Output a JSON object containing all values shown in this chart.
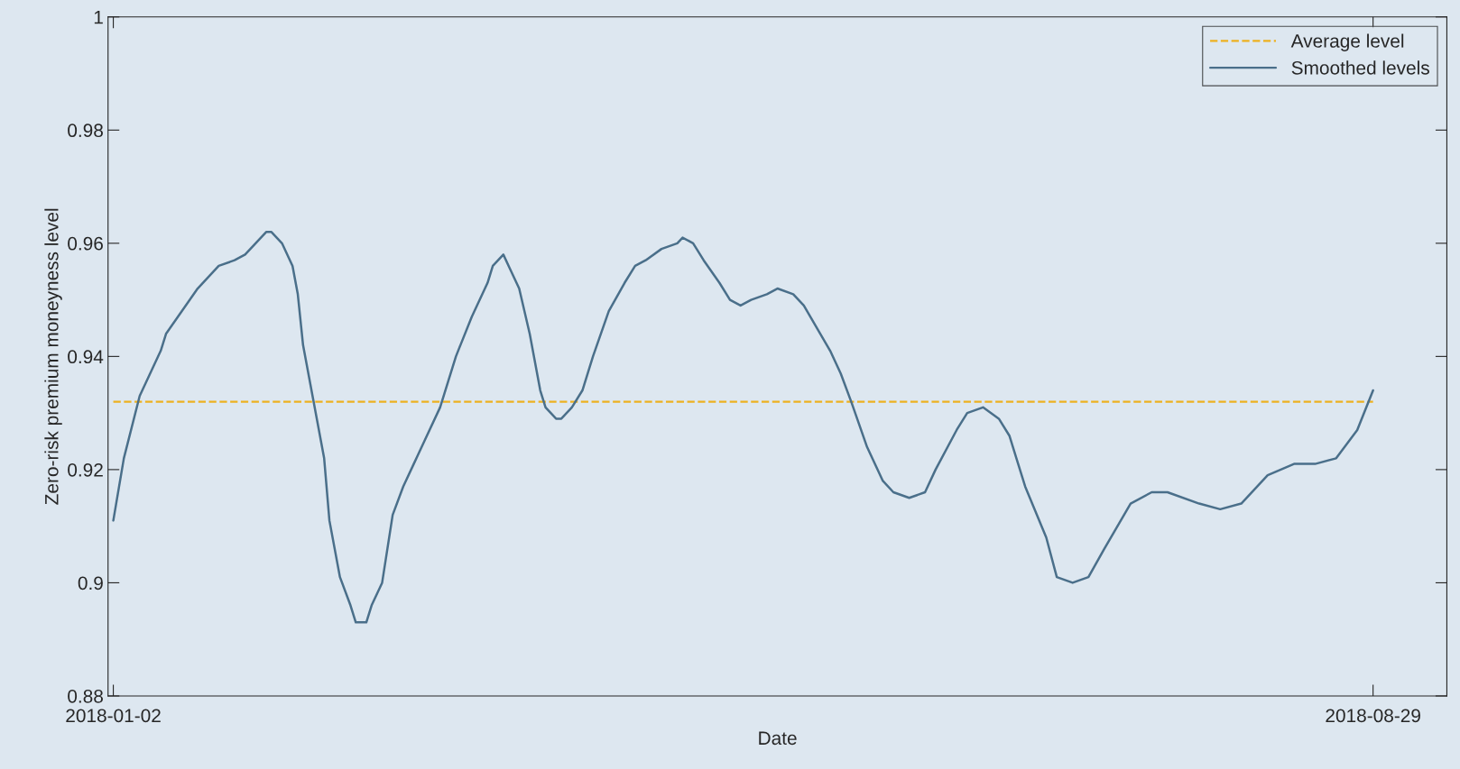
{
  "chart_data": {
    "type": "line",
    "xlabel": "Date",
    "ylabel": "Zero-risk premium moneyness level",
    "x": [
      "2018-01-02",
      "2018-01-04",
      "2018-01-07",
      "2018-01-11",
      "2018-01-12",
      "2018-01-18",
      "2018-01-22",
      "2018-01-25",
      "2018-01-27",
      "2018-01-30",
      "2018-01-31",
      "2018-02-01",
      "2018-02-03",
      "2018-02-05",
      "2018-02-06",
      "2018-02-07",
      "2018-02-09",
      "2018-02-11",
      "2018-02-12",
      "2018-02-14",
      "2018-02-16",
      "2018-02-17",
      "2018-02-19",
      "2018-02-20",
      "2018-02-22",
      "2018-02-24",
      "2018-02-26",
      "2018-02-28",
      "2018-03-02",
      "2018-03-05",
      "2018-03-08",
      "2018-03-11",
      "2018-03-14",
      "2018-03-15",
      "2018-03-17",
      "2018-03-18",
      "2018-03-20",
      "2018-03-22",
      "2018-03-24",
      "2018-03-25",
      "2018-03-27",
      "2018-03-28",
      "2018-03-30",
      "2018-04-01",
      "2018-04-03",
      "2018-04-06",
      "2018-04-09",
      "2018-04-11",
      "2018-04-13",
      "2018-04-16",
      "2018-04-19",
      "2018-04-20",
      "2018-04-22",
      "2018-04-24",
      "2018-04-27",
      "2018-04-29",
      "2018-05-01",
      "2018-05-03",
      "2018-05-06",
      "2018-05-08",
      "2018-05-11",
      "2018-05-13",
      "2018-05-18",
      "2018-05-20",
      "2018-05-22",
      "2018-05-25",
      "2018-05-28",
      "2018-05-30",
      "2018-06-02",
      "2018-06-05",
      "2018-06-07",
      "2018-06-11",
      "2018-06-13",
      "2018-06-16",
      "2018-06-19",
      "2018-06-21",
      "2018-06-24",
      "2018-06-28",
      "2018-06-30",
      "2018-07-03",
      "2018-07-06",
      "2018-07-09",
      "2018-07-14",
      "2018-07-18",
      "2018-07-21",
      "2018-07-27",
      "2018-07-31",
      "2018-08-04",
      "2018-08-09",
      "2018-08-14",
      "2018-08-18",
      "2018-08-22",
      "2018-08-26",
      "2018-08-29"
    ],
    "series": [
      {
        "name": "Smoothed levels",
        "color": "#4a6f8a",
        "line_style": "solid",
        "values": [
          0.911,
          0.922,
          0.933,
          0.941,
          0.944,
          0.952,
          0.956,
          0.957,
          0.958,
          0.961,
          0.962,
          0.962,
          0.96,
          0.956,
          0.951,
          0.942,
          0.932,
          0.922,
          0.911,
          0.901,
          0.896,
          0.893,
          0.893,
          0.896,
          0.9,
          0.912,
          0.917,
          0.921,
          0.925,
          0.931,
          0.94,
          0.947,
          0.953,
          0.956,
          0.958,
          0.956,
          0.952,
          0.944,
          0.934,
          0.931,
          0.929,
          0.929,
          0.931,
          0.934,
          0.94,
          0.948,
          0.953,
          0.956,
          0.957,
          0.959,
          0.96,
          0.961,
          0.96,
          0.957,
          0.953,
          0.95,
          0.949,
          0.95,
          0.951,
          0.952,
          0.951,
          0.949,
          0.941,
          0.937,
          0.932,
          0.924,
          0.918,
          0.916,
          0.915,
          0.916,
          0.92,
          0.927,
          0.93,
          0.931,
          0.929,
          0.926,
          0.917,
          0.908,
          0.901,
          0.9,
          0.901,
          0.906,
          0.914,
          0.916,
          0.916,
          0.914,
          0.913,
          0.914,
          0.919,
          0.921,
          0.921,
          0.922,
          0.927,
          0.934
        ]
      }
    ],
    "ref_lines": [
      {
        "axis": "y",
        "value": 0.932,
        "label": "Average level",
        "color": "#edb120",
        "line_style": "dashed"
      }
    ],
    "xlim": [
      "2018-01-01",
      "2018-09-12"
    ],
    "xticks": [
      "2018-01-02",
      "2018-08-29"
    ],
    "ylim": [
      0.88,
      1
    ],
    "yticks": [
      0.88,
      0.9,
      0.92,
      0.94,
      0.96,
      0.98,
      1
    ],
    "legend": "top right"
  }
}
